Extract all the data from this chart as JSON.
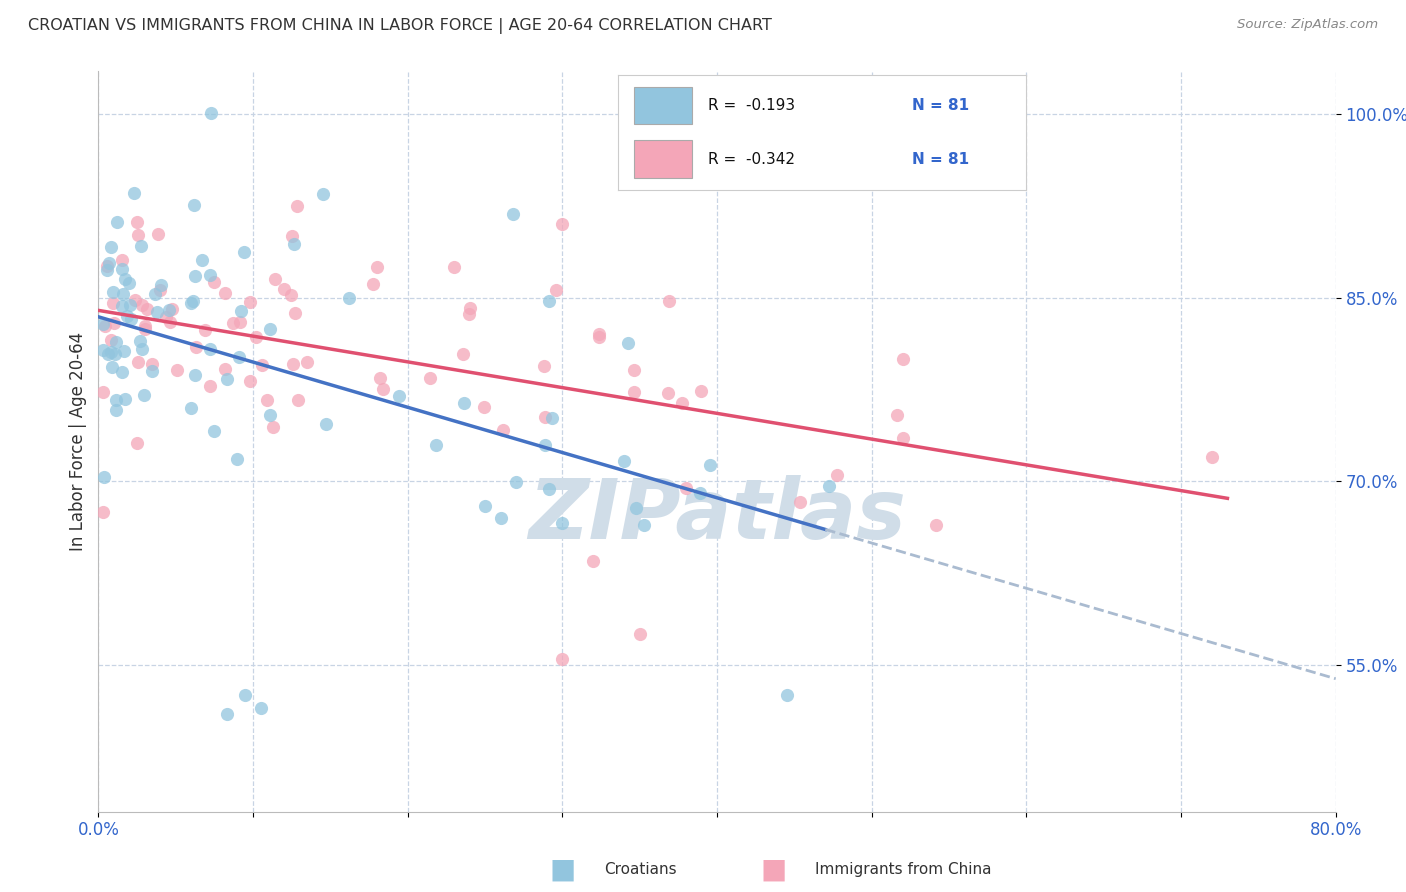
{
  "title": "CROATIAN VS IMMIGRANTS FROM CHINA IN LABOR FORCE | AGE 20-64 CORRELATION CHART",
  "source": "Source: ZipAtlas.com",
  "ylabel": "In Labor Force | Age 20-64",
  "xmin": 0.0,
  "xmax": 0.8,
  "ymin": 0.43,
  "ymax": 1.035,
  "blue_color": "#92c5de",
  "pink_color": "#f4a6b8",
  "blue_line_color": "#4472c4",
  "pink_line_color": "#e05070",
  "dash_color": "#aabbd0",
  "watermark": "ZIPatlas",
  "watermark_color": "#d0dde8",
  "legend_r1": "R =  -0.193",
  "legend_n1": "N = 81",
  "legend_r2": "R =  -0.342",
  "legend_n2": "N = 81",
  "legend_label1": "Croatians",
  "legend_label2": "Immigrants from China"
}
